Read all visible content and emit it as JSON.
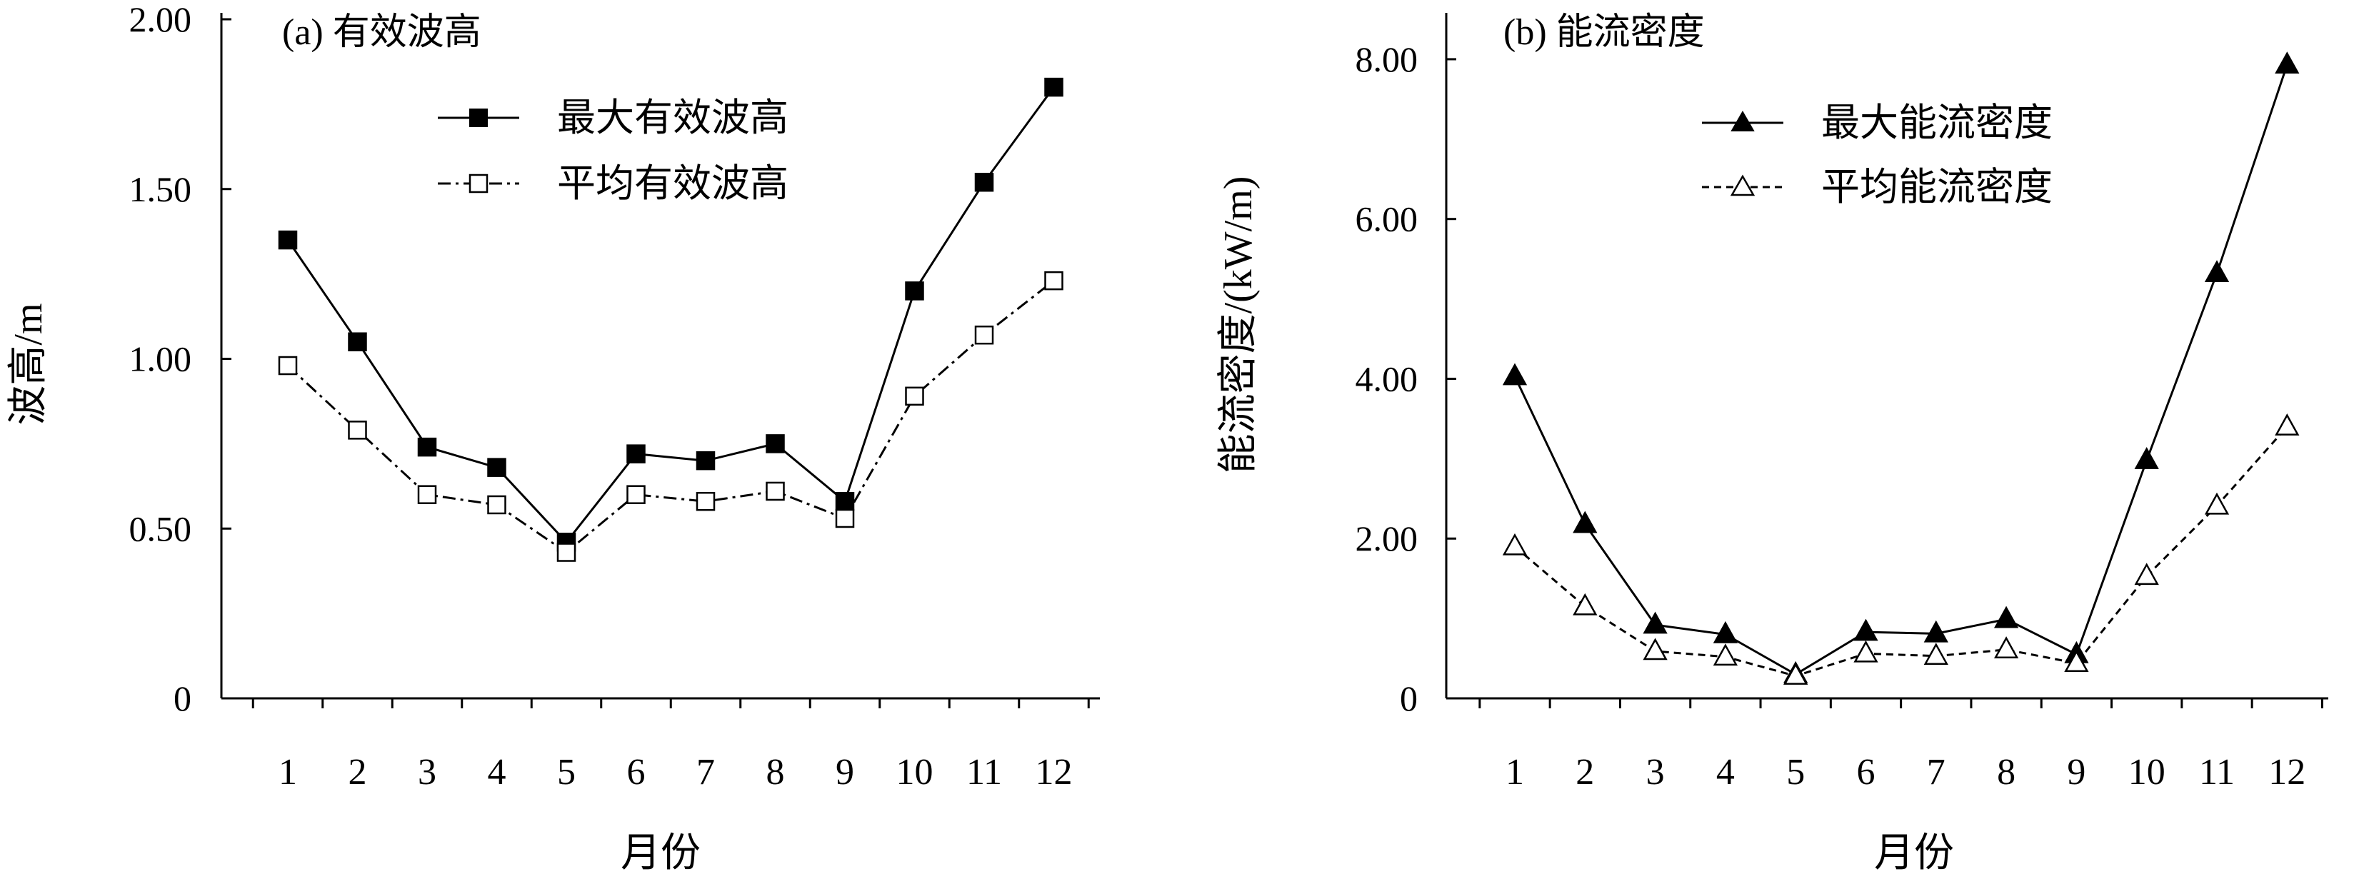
{
  "chart_data": [
    {
      "type": "line",
      "title": "(a) 有效波高",
      "xlabel": "月份",
      "ylabel": "波高/m",
      "categories": [
        "1",
        "2",
        "3",
        "4",
        "5",
        "6",
        "7",
        "8",
        "9",
        "10",
        "11",
        "12"
      ],
      "ylim": [
        0,
        2.0
      ],
      "yticks": [
        "0",
        "0.50",
        "1.00",
        "1.50",
        "2.00"
      ],
      "ytick_values": [
        0,
        0.5,
        1.0,
        1.5,
        2.0
      ],
      "legend_position": "top-center",
      "grid": false,
      "series": [
        {
          "name": "最大有效波高",
          "marker": "filled-square",
          "line": "solid",
          "color": "#000000",
          "values": [
            1.35,
            1.05,
            0.74,
            0.68,
            0.46,
            0.72,
            0.7,
            0.75,
            0.58,
            1.2,
            1.52,
            1.8
          ]
        },
        {
          "name": "平均有效波高",
          "marker": "open-square",
          "line": "dash-dot",
          "color": "#000000",
          "values": [
            0.98,
            0.79,
            0.6,
            0.57,
            0.43,
            0.6,
            0.58,
            0.61,
            0.53,
            0.89,
            1.07,
            1.23
          ]
        }
      ]
    },
    {
      "type": "line",
      "title": "(b) 能流密度",
      "xlabel": "月份",
      "ylabel": "能流密度/(kW/m)",
      "categories": [
        "1",
        "2",
        "3",
        "4",
        "5",
        "6",
        "7",
        "8",
        "9",
        "10",
        "11",
        "12"
      ],
      "ylim": [
        0,
        8.5
      ],
      "yticks": [
        "0",
        "2.00",
        "4.00",
        "6.00",
        "8.00"
      ],
      "ytick_values": [
        0,
        2,
        4,
        6,
        8
      ],
      "legend_position": "top-right",
      "grid": false,
      "series": [
        {
          "name": "最大能流密度",
          "marker": "filled-triangle",
          "line": "solid",
          "color": "#000000",
          "values": [
            4.03,
            2.18,
            0.92,
            0.8,
            0.3,
            0.83,
            0.81,
            0.99,
            0.55,
            2.98,
            5.32,
            7.93
          ]
        },
        {
          "name": "平均能流密度",
          "marker": "open-triangle",
          "line": "dashed",
          "color": "#000000",
          "values": [
            1.9,
            1.15,
            0.59,
            0.52,
            0.28,
            0.56,
            0.53,
            0.61,
            0.44,
            1.53,
            2.41,
            3.4
          ]
        }
      ]
    }
  ]
}
